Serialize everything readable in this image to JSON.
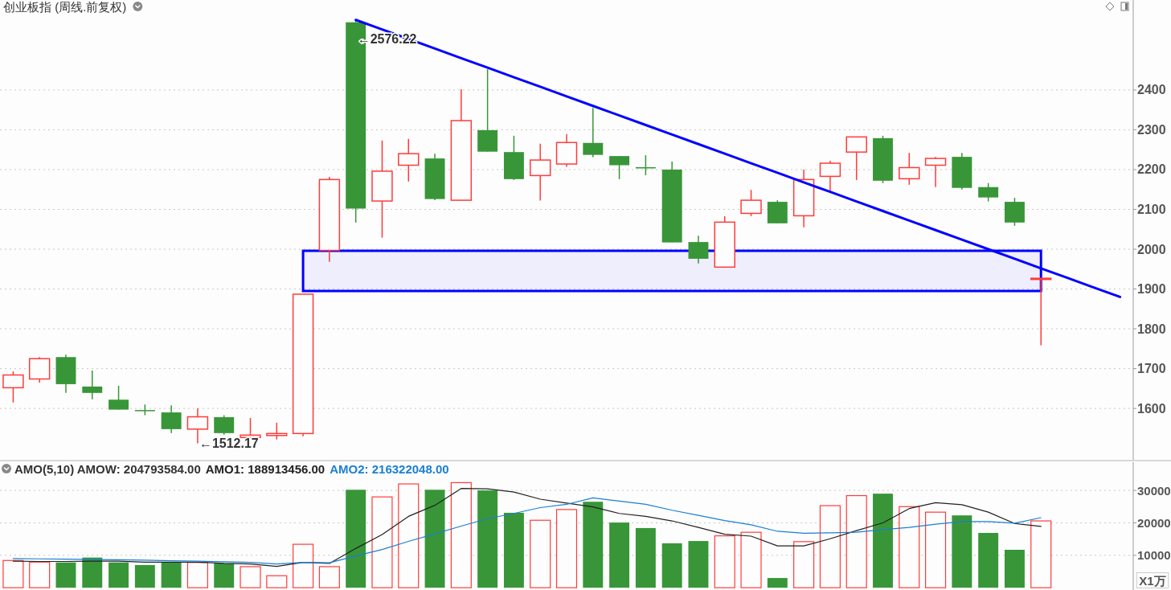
{
  "chart_data": [
    {
      "type": "candlestick",
      "title": "创业板指 (周线.前复权)",
      "categories": [
        null,
        null,
        null,
        null,
        null,
        null,
        null,
        null,
        null,
        null,
        null,
        null,
        null,
        null,
        null,
        null,
        null,
        null,
        null,
        null,
        null,
        null,
        null,
        null,
        null,
        null,
        null,
        null,
        null,
        null,
        null,
        null,
        null,
        null,
        null,
        null,
        null,
        null,
        null,
        null,
        null,
        null,
        null
      ],
      "ohlc": [
        [
          1652,
          1693,
          1615,
          1684
        ],
        [
          1674,
          1729,
          1665,
          1725
        ],
        [
          1729,
          1735,
          1639,
          1661
        ],
        [
          1655,
          1695,
          1623,
          1639
        ],
        [
          1622,
          1657,
          1597,
          1597
        ],
        [
          1596,
          1610,
          1583,
          1593
        ],
        [
          1590,
          1608,
          1538,
          1548
        ],
        [
          1548,
          1600,
          1512.17,
          1579
        ],
        [
          1578,
          1583,
          1534,
          1538
        ],
        [
          1527,
          1576,
          1527,
          1533
        ],
        [
          1532,
          1564,
          1522,
          1537
        ],
        [
          1537,
          1887,
          1530,
          1887
        ],
        [
          1997,
          2182,
          1968,
          2175
        ],
        [
          2570,
          2576.22,
          2067,
          2102
        ],
        [
          2121,
          2273,
          2029,
          2196
        ],
        [
          2211,
          2277,
          2170,
          2240
        ],
        [
          2228,
          2240,
          2123,
          2126
        ],
        [
          2123,
          2402,
          2123,
          2323
        ],
        [
          2299,
          2452,
          2245,
          2245
        ],
        [
          2244,
          2285,
          2174,
          2176
        ],
        [
          2185,
          2265,
          2122,
          2224
        ],
        [
          2214,
          2289,
          2207,
          2268
        ],
        [
          2267,
          2355,
          2231,
          2237
        ],
        [
          2234,
          2234,
          2176,
          2211
        ],
        [
          2206,
          2236,
          2186,
          2205
        ],
        [
          2200,
          2220,
          2017,
          2017
        ],
        [
          2018,
          2034,
          1964,
          1976
        ],
        [
          1955,
          2083,
          1955,
          2068
        ],
        [
          2090,
          2149,
          2083,
          2123
        ],
        [
          2119,
          2123,
          2065,
          2065
        ],
        [
          2084,
          2200,
          2055,
          2175
        ],
        [
          2183,
          2222,
          2143,
          2216
        ],
        [
          2244,
          2282,
          2174,
          2282
        ],
        [
          2279,
          2285,
          2166,
          2172
        ],
        [
          2177,
          2242,
          2162,
          2205
        ],
        [
          2211,
          2232,
          2156,
          2228
        ],
        [
          2232,
          2242,
          2150,
          2154
        ],
        [
          2156,
          2166,
          2120,
          2130
        ],
        [
          2119,
          2129,
          2059,
          2067
        ],
        [
          1926,
          1927,
          1759,
          1927
        ],
        null,
        null,
        null
      ],
      "colors": [
        "#ff3b3b",
        "#ff3b3b",
        "#389638",
        "#389638",
        "#389638",
        "#389638",
        "#389638",
        "#ff3b3b",
        "#389638",
        "#ff3b3b",
        "#ff3b3b",
        "#ff3b3b",
        "#ff3b3b",
        "#389638",
        "#ff3b3b",
        "#ff3b3b",
        "#389638",
        "#ff3b3b",
        "#389638",
        "#389638",
        "#ff3b3b",
        "#ff3b3b",
        "#389638",
        "#389638",
        "#389638",
        "#389638",
        "#389638",
        "#ff3b3b",
        "#ff3b3b",
        "#389638",
        "#ff3b3b",
        "#ff3b3b",
        "#ff3b3b",
        "#389638",
        "#ff3b3b",
        "#ff3b3b",
        "#389638",
        "#389638",
        "#389638",
        "#ff3b3b",
        null,
        null,
        null
      ],
      "series": [
        {
          "type": "line",
          "color": "#0000ff",
          "values": [
            null,
            null,
            null,
            null,
            null,
            null,
            null,
            null,
            null,
            null,
            null,
            null,
            null,
            2576,
            2552,
            2528,
            2504,
            2480,
            2456,
            2432,
            2408,
            2384,
            2360,
            2336,
            2312,
            2288,
            2264,
            2240,
            2216,
            2192,
            2168,
            2144,
            2120,
            2096,
            2072,
            2048,
            2024,
            2000,
            1976,
            1952,
            1928,
            1904,
            1880
          ]
        }
      ],
      "bands": [
        {
          "axis": "y",
          "from": 1895,
          "to": 1996,
          "color": "#0000ff"
        }
      ],
      "annotations": [
        "←2576.22",
        "←1512.17"
      ],
      "ylim": [
        1469,
        2626
      ],
      "yticks": [
        1600,
        1700,
        1800,
        1900,
        2000,
        2100,
        2200,
        2300,
        2400
      ],
      "tick_labels": "y",
      "grid": "y"
    },
    {
      "type": "bar",
      "title": "AMO(5,10) AMOW: 204793584.00",
      "categories": [
        null,
        null,
        null,
        null,
        null,
        null,
        null,
        null,
        null,
        null,
        null,
        null,
        null,
        null,
        null,
        null,
        null,
        null,
        null,
        null,
        null,
        null,
        null,
        null,
        null,
        null,
        null,
        null,
        null,
        null,
        null,
        null,
        null,
        null,
        null,
        null,
        null,
        null,
        null,
        null,
        null,
        null,
        null
      ],
      "series": [
        {
          "values": [
            8400,
            7900,
            7800,
            9300,
            7800,
            7000,
            7800,
            7800,
            7500,
            6500,
            3700,
            13400,
            6500,
            30200,
            28000,
            32000,
            30200,
            32400,
            30000,
            23100,
            20800,
            24100,
            26500,
            20100,
            18400,
            13700,
            14400,
            16000,
            17100,
            3000,
            14200,
            25300,
            28400,
            29000,
            25000,
            23300,
            22300,
            16900,
            11700,
            20600,
            null,
            null,
            null
          ],
          "colors": [
            "#ff3b3b",
            "#ff3b3b",
            "#389638",
            "#389638",
            "#389638",
            "#389638",
            "#389638",
            "#ff3b3b",
            "#389638",
            "#ff3b3b",
            "#ff3b3b",
            "#ff3b3b",
            "#ff3b3b",
            "#389638",
            "#ff3b3b",
            "#ff3b3b",
            "#389638",
            "#ff3b3b",
            "#389638",
            "#389638",
            "#ff3b3b",
            "#ff3b3b",
            "#389638",
            "#389638",
            "#389638",
            "#389638",
            "#389638",
            "#ff3b3b",
            "#ff3b3b",
            "#389638",
            "#ff3b3b",
            "#ff3b3b",
            "#ff3b3b",
            "#389638",
            "#ff3b3b",
            "#ff3b3b",
            "#389638",
            "#389638",
            "#389638",
            "#ff3b3b",
            null,
            null,
            null
          ]
        },
        {
          "type": "line",
          "name": "AMO1: 188913456.00",
          "color": "#222222",
          "values": [
            8200,
            8100,
            8100,
            8200,
            8200,
            7900,
            7900,
            7900,
            7500,
            7300,
            6600,
            7800,
            7500,
            12100,
            16400,
            22000,
            25400,
            30600,
            30500,
            29500,
            27300,
            26100,
            24900,
            22900,
            22000,
            20600,
            18600,
            16500,
            15900,
            12900,
            12900,
            15100,
            17600,
            20000,
            24400,
            26200,
            25600,
            23300,
            19800,
            18900,
            null,
            null,
            null
          ]
        },
        {
          "type": "line",
          "name": "AMO2: 216322048.00",
          "color": "#1a7fd4",
          "values": [
            9000,
            8900,
            8800,
            8700,
            8600,
            8500,
            8300,
            8200,
            8000,
            7800,
            7300,
            7800,
            7700,
            9800,
            11800,
            14300,
            16600,
            19000,
            21300,
            22900,
            24700,
            25700,
            27700,
            26700,
            25700,
            23900,
            22300,
            20700,
            19400,
            17400,
            16800,
            16900,
            17100,
            17900,
            18600,
            19600,
            20400,
            20400,
            19900,
            21600,
            null,
            null,
            null
          ]
        }
      ],
      "annotations": [
        "X1万"
      ],
      "ylim": [
        -700,
        38700
      ],
      "yticks": [
        10000,
        20000,
        30000
      ],
      "tick_labels": "y",
      "grid": "y"
    }
  ]
}
